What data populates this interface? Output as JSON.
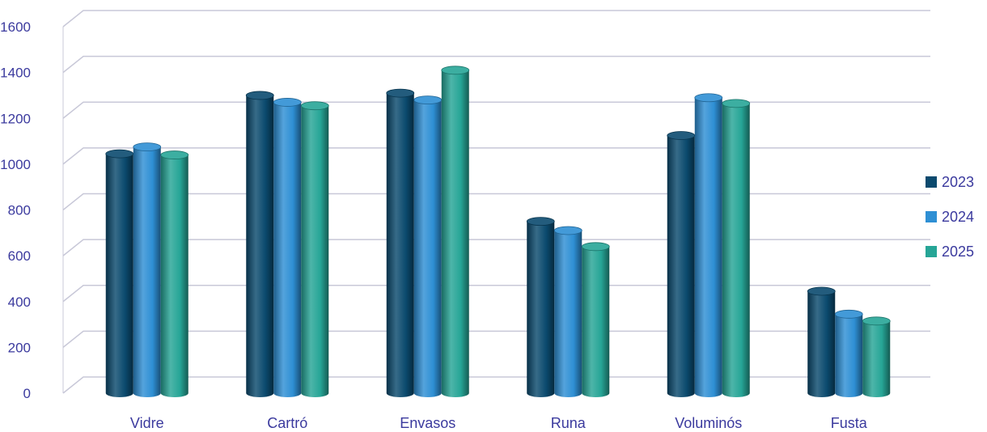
{
  "chart_data": {
    "type": "bar",
    "categories": [
      "Vidre",
      "Cartró",
      "Envasos",
      "Runa",
      "Voluminós",
      "Fusta"
    ],
    "series": [
      {
        "name": "2023",
        "color": "#0b4a6e",
        "values": [
          1045,
          1300,
          1310,
          750,
          1125,
          445
        ]
      },
      {
        "name": "2024",
        "color": "#2e8fd4",
        "values": [
          1075,
          1270,
          1280,
          710,
          1290,
          345
        ]
      },
      {
        "name": "2025",
        "color": "#26a596",
        "values": [
          1040,
          1255,
          1410,
          640,
          1265,
          315
        ]
      }
    ],
    "yticks": [
      "0",
      "200",
      "400",
      "600",
      "800",
      "1000",
      "1200",
      "1400",
      "1600"
    ],
    "ylim": [
      0,
      1600
    ],
    "grid": true,
    "legend_position": "right",
    "title": "",
    "xlabel": "",
    "ylabel": ""
  }
}
